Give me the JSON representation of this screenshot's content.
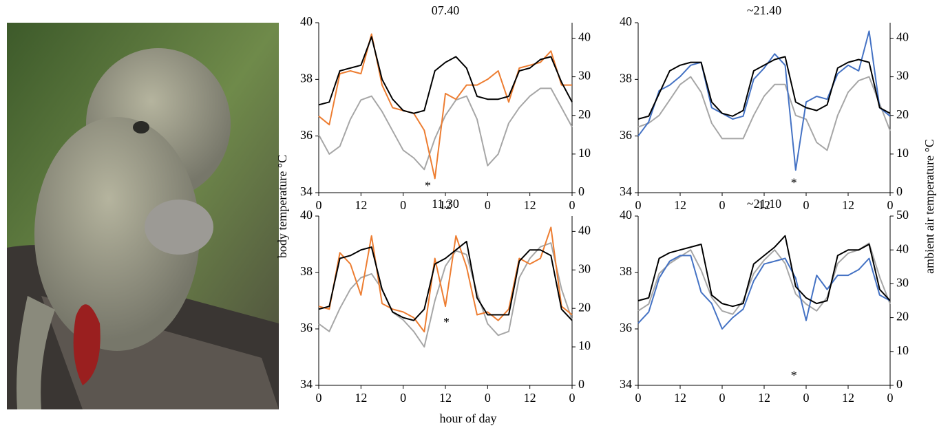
{
  "labels": {
    "y_label": "body temperature °C",
    "y2_label": "ambient air temperature °C",
    "x_label": "hour of day"
  },
  "chart_data": [
    {
      "type": "line",
      "title": "07.40",
      "x": [
        0,
        3,
        6,
        9,
        12,
        15,
        18,
        21,
        24,
        27,
        30,
        33,
        36,
        39,
        42,
        45,
        48,
        51,
        54,
        57,
        60,
        63,
        66,
        69,
        72
      ],
      "xlim": [
        0,
        72
      ],
      "xticks": [
        0,
        12,
        {
          "value": 24,
          "label": "0"
        },
        {
          "value": 36,
          "label": "12"
        },
        {
          "value": 48,
          "label": "0"
        },
        {
          "value": 60,
          "label": "12"
        },
        {
          "value": 72,
          "label": "0"
        }
      ],
      "ylim": [
        34,
        40
      ],
      "yticks": [
        34,
        36,
        38,
        40
      ],
      "y2lim": [
        0,
        44
      ],
      "y2ticks": [
        0,
        10,
        20,
        30,
        40
      ],
      "series": [
        {
          "color": "#a6a6a6",
          "axis": "y2",
          "values": [
            15,
            10,
            12,
            19,
            24,
            25,
            21,
            16,
            11,
            9,
            6,
            14,
            20,
            24,
            25,
            19,
            7,
            10,
            18,
            22,
            25,
            27,
            27,
            22,
            17
          ]
        },
        {
          "color": "#ed7d31",
          "values": [
            36.7,
            36.4,
            38.2,
            38.3,
            38.2,
            39.6,
            37.8,
            37.0,
            36.9,
            36.8,
            36.2,
            34.5,
            37.5,
            37.3,
            37.8,
            37.8,
            38.0,
            38.3,
            37.2,
            38.4,
            38.5,
            38.6,
            39.0,
            37.8,
            37.8
          ]
        },
        {
          "color": "#000000",
          "values": [
            37.1,
            37.2,
            38.3,
            38.4,
            38.5,
            39.5,
            38.0,
            37.3,
            36.9,
            36.8,
            36.9,
            38.3,
            38.6,
            38.8,
            38.4,
            37.4,
            37.3,
            37.3,
            37.4,
            38.3,
            38.4,
            38.7,
            38.8,
            37.9,
            37.2
          ]
        }
      ],
      "annotations": [
        {
          "text": "*",
          "x": 31,
          "y": 34.3
        }
      ]
    },
    {
      "type": "line",
      "title": "~21.40",
      "x": [
        0,
        3,
        6,
        9,
        12,
        15,
        18,
        21,
        24,
        27,
        30,
        33,
        36,
        39,
        42,
        45,
        48,
        51,
        54,
        57,
        60,
        63,
        66,
        69,
        72
      ],
      "xlim": [
        0,
        72
      ],
      "xticks": [
        0,
        12,
        {
          "value": 24,
          "label": "0"
        },
        {
          "value": 36,
          "label": "12"
        },
        {
          "value": 48,
          "label": "0"
        },
        {
          "value": 60,
          "label": "12"
        },
        {
          "value": 72,
          "label": "0"
        }
      ],
      "ylim": [
        34,
        40
      ],
      "yticks": [
        34,
        36,
        38,
        40
      ],
      "y2lim": [
        0,
        44
      ],
      "y2ticks": [
        0,
        10,
        20,
        30,
        40
      ],
      "series": [
        {
          "color": "#a6a6a6",
          "axis": "y2",
          "values": [
            17,
            18,
            20,
            24,
            28,
            30,
            26,
            18,
            14,
            14,
            14,
            20,
            25,
            28,
            28,
            20,
            19,
            13,
            11,
            20,
            26,
            29,
            30,
            23,
            16
          ]
        },
        {
          "color": "#4472c4",
          "values": [
            36.0,
            36.5,
            37.6,
            37.8,
            38.1,
            38.5,
            38.6,
            37.0,
            36.8,
            36.6,
            36.7,
            38.0,
            38.4,
            38.9,
            38.5,
            34.8,
            37.2,
            37.4,
            37.3,
            38.2,
            38.5,
            38.3,
            39.7,
            37.0,
            36.7
          ]
        },
        {
          "color": "#000000",
          "values": [
            36.6,
            36.7,
            37.5,
            38.3,
            38.5,
            38.6,
            38.6,
            37.2,
            36.8,
            36.7,
            36.9,
            38.3,
            38.5,
            38.7,
            38.8,
            37.2,
            37.0,
            36.9,
            37.1,
            38.4,
            38.6,
            38.7,
            38.6,
            37.0,
            36.8
          ]
        }
      ],
      "annotations": [
        {
          "text": "*",
          "x": 44.5,
          "y": 34.4
        }
      ]
    },
    {
      "type": "line",
      "title": "11.30",
      "x": [
        0,
        3,
        6,
        9,
        12,
        15,
        18,
        21,
        24,
        27,
        30,
        33,
        36,
        39,
        42,
        45,
        48,
        51,
        54,
        57,
        60,
        63,
        66,
        69,
        72
      ],
      "xlim": [
        0,
        72
      ],
      "xticks": [
        0,
        12,
        {
          "value": 24,
          "label": "0"
        },
        {
          "value": 36,
          "label": "12"
        },
        {
          "value": 48,
          "label": "0"
        },
        {
          "value": 60,
          "label": "12"
        },
        {
          "value": 72,
          "label": "0"
        }
      ],
      "ylim": [
        34,
        40
      ],
      "yticks": [
        34,
        36,
        38,
        40
      ],
      "y2lim": [
        0,
        44
      ],
      "y2ticks": [
        0,
        10,
        20,
        30,
        40
      ],
      "series": [
        {
          "color": "#a6a6a6",
          "axis": "y2",
          "values": [
            16,
            14,
            20,
            25,
            28,
            29,
            25,
            19,
            17,
            14,
            10,
            22,
            31,
            35,
            34,
            24,
            16,
            13,
            14,
            28,
            33,
            36,
            37,
            25,
            17
          ]
        },
        {
          "color": "#ed7d31",
          "values": [
            36.8,
            36.7,
            38.7,
            38.3,
            37.2,
            39.3,
            36.9,
            36.7,
            36.6,
            36.4,
            35.9,
            38.5,
            36.8,
            39.3,
            38.2,
            36.5,
            36.6,
            36.3,
            36.7,
            38.5,
            38.3,
            38.5,
            39.6,
            36.8,
            36.5
          ]
        },
        {
          "color": "#000000",
          "values": [
            36.7,
            36.8,
            38.5,
            38.6,
            38.8,
            38.9,
            37.4,
            36.6,
            36.4,
            36.3,
            36.7,
            38.3,
            38.5,
            38.8,
            39.1,
            37.1,
            36.5,
            36.5,
            36.5,
            38.4,
            38.8,
            38.8,
            38.6,
            36.7,
            36.3
          ]
        }
      ],
      "annotations": [
        {
          "text": "*",
          "x": 36.3,
          "y": 36.3
        }
      ]
    },
    {
      "type": "line",
      "title": "~21.10",
      "x": [
        0,
        3,
        6,
        9,
        12,
        15,
        18,
        21,
        24,
        27,
        30,
        33,
        36,
        39,
        42,
        45,
        48,
        51,
        54,
        57,
        60,
        63,
        66,
        69,
        72
      ],
      "xlim": [
        0,
        72
      ],
      "xticks": [
        0,
        12,
        {
          "value": 24,
          "label": "0"
        },
        {
          "value": 36,
          "label": "12"
        },
        {
          "value": 48,
          "label": "0"
        },
        {
          "value": 60,
          "label": "12"
        },
        {
          "value": 72,
          "label": "0"
        }
      ],
      "ylim": [
        34,
        40
      ],
      "yticks": [
        34,
        36,
        38,
        40
      ],
      "y2lim": [
        0,
        50
      ],
      "y2ticks": [
        0,
        10,
        20,
        30,
        40,
        50
      ],
      "series": [
        {
          "color": "#a6a6a6",
          "axis": "y2",
          "values": [
            22,
            24,
            33,
            36,
            38,
            40,
            34,
            26,
            22,
            21,
            25,
            33,
            37,
            40,
            36,
            27,
            24,
            22,
            26,
            36,
            39,
            40,
            42,
            32,
            24
          ]
        },
        {
          "color": "#4472c4",
          "values": [
            36.2,
            36.6,
            37.8,
            38.4,
            38.6,
            38.6,
            37.3,
            36.9,
            36.0,
            36.4,
            36.7,
            37.7,
            38.3,
            38.4,
            38.5,
            37.8,
            36.3,
            37.9,
            37.4,
            37.9,
            37.9,
            38.1,
            38.5,
            37.2,
            37.0
          ]
        },
        {
          "color": "#000000",
          "values": [
            37.0,
            37.1,
            38.5,
            38.7,
            38.8,
            38.9,
            39.0,
            37.2,
            36.9,
            36.8,
            36.9,
            38.3,
            38.6,
            38.9,
            39.3,
            37.5,
            37.1,
            36.9,
            37.0,
            38.6,
            38.8,
            38.8,
            39.0,
            37.4,
            37.0
          ]
        }
      ],
      "annotations": [
        {
          "text": "*",
          "x": 44.5,
          "y": 34.4
        }
      ]
    }
  ]
}
